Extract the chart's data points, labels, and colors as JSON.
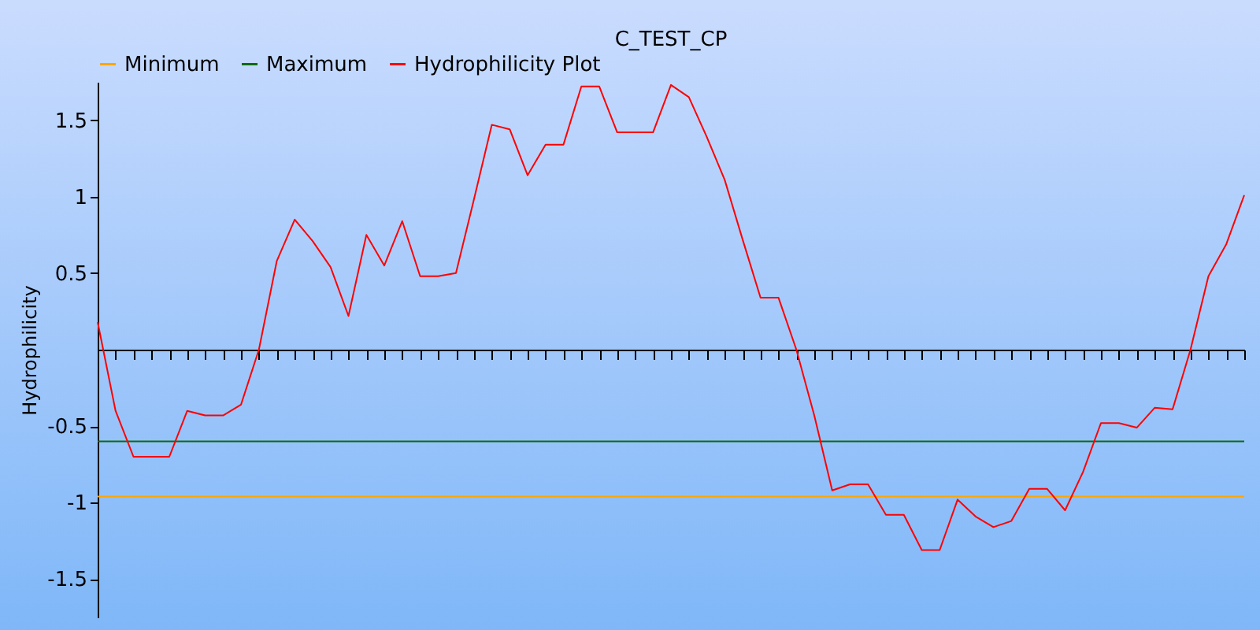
{
  "chart_data": {
    "type": "line",
    "title": "C_TEST_CP",
    "ylabel": "Hydrophilicity",
    "categories": [
      null,
      null,
      null,
      null,
      null,
      null,
      null,
      null,
      null,
      null,
      null,
      null,
      null,
      null,
      null,
      null,
      null,
      null,
      null,
      null,
      null,
      null,
      null,
      null,
      null,
      null,
      null,
      null,
      null,
      null,
      null,
      null,
      null,
      null,
      null,
      null,
      null,
      null,
      null,
      null,
      null,
      null,
      null,
      null,
      null,
      null,
      null,
      null,
      null,
      null,
      null,
      null,
      null,
      null,
      null,
      null,
      null,
      null,
      null,
      null,
      null,
      null,
      null,
      null,
      null
    ],
    "series": [
      {
        "name": "Minimum",
        "color": "#ffa500",
        "values": [
          -0.96,
          -0.96,
          -0.96,
          -0.96,
          -0.96,
          -0.96,
          -0.96,
          -0.96,
          -0.96,
          -0.96,
          -0.96,
          -0.96,
          -0.96,
          -0.96,
          -0.96,
          -0.96,
          -0.96,
          -0.96,
          -0.96,
          -0.96,
          -0.96,
          -0.96,
          -0.96,
          -0.96,
          -0.96,
          -0.96,
          -0.96,
          -0.96,
          -0.96,
          -0.96,
          -0.96,
          -0.96,
          -0.96,
          -0.96,
          -0.96,
          -0.96,
          -0.96,
          -0.96,
          -0.96,
          -0.96,
          -0.96,
          -0.96,
          -0.96,
          -0.96,
          -0.96,
          -0.96,
          -0.96,
          -0.96,
          -0.96,
          -0.96,
          -0.96,
          -0.96,
          -0.96,
          -0.96,
          -0.96,
          -0.96,
          -0.96,
          -0.96,
          -0.96,
          -0.96,
          -0.96,
          -0.96,
          -0.96,
          -0.96,
          -0.96
        ]
      },
      {
        "name": "Maximum",
        "color": "#106a10",
        "values": [
          -0.6,
          -0.6,
          -0.6,
          -0.6,
          -0.6,
          -0.6,
          -0.6,
          -0.6,
          -0.6,
          -0.6,
          -0.6,
          -0.6,
          -0.6,
          -0.6,
          -0.6,
          -0.6,
          -0.6,
          -0.6,
          -0.6,
          -0.6,
          -0.6,
          -0.6,
          -0.6,
          -0.6,
          -0.6,
          -0.6,
          -0.6,
          -0.6,
          -0.6,
          -0.6,
          -0.6,
          -0.6,
          -0.6,
          -0.6,
          -0.6,
          -0.6,
          -0.6,
          -0.6,
          -0.6,
          -0.6,
          -0.6,
          -0.6,
          -0.6,
          -0.6,
          -0.6,
          -0.6,
          -0.6,
          -0.6,
          -0.6,
          -0.6,
          -0.6,
          -0.6,
          -0.6,
          -0.6,
          -0.6,
          -0.6,
          -0.6,
          -0.6,
          -0.6,
          -0.6,
          -0.6,
          -0.6,
          -0.6,
          -0.6,
          -0.6
        ]
      },
      {
        "name": "Hydrophilicity Plot",
        "color": "#ff0000",
        "values": [
          0.18,
          -0.4,
          -0.7,
          -0.7,
          -0.7,
          -0.4,
          -0.43,
          -0.43,
          -0.36,
          0.0,
          0.58,
          0.85,
          0.71,
          0.54,
          0.22,
          0.75,
          0.55,
          0.84,
          0.48,
          0.48,
          0.5,
          0.98,
          1.47,
          1.44,
          1.14,
          1.34,
          1.34,
          1.72,
          1.72,
          1.42,
          1.42,
          1.42,
          1.73,
          1.65,
          1.39,
          1.11,
          0.72,
          0.34,
          0.34,
          0.0,
          -0.43,
          -0.92,
          -0.88,
          -0.88,
          -1.08,
          -1.08,
          -1.31,
          -1.31,
          -0.98,
          -1.09,
          -1.16,
          -1.12,
          -0.91,
          -0.91,
          -1.05,
          -0.8,
          -0.48,
          -0.48,
          -0.51,
          -0.38,
          -0.39,
          0.0,
          0.48,
          0.69,
          1.01
        ]
      }
    ],
    "ylim": [
      -1.75,
      1.75
    ],
    "yticks": [
      -1.5,
      -1,
      -0.5,
      0.5,
      1,
      1.5
    ],
    "tick_labels": "y",
    "legend": "top",
    "grid": false,
    "marker": "none",
    "line_style": "solid"
  }
}
